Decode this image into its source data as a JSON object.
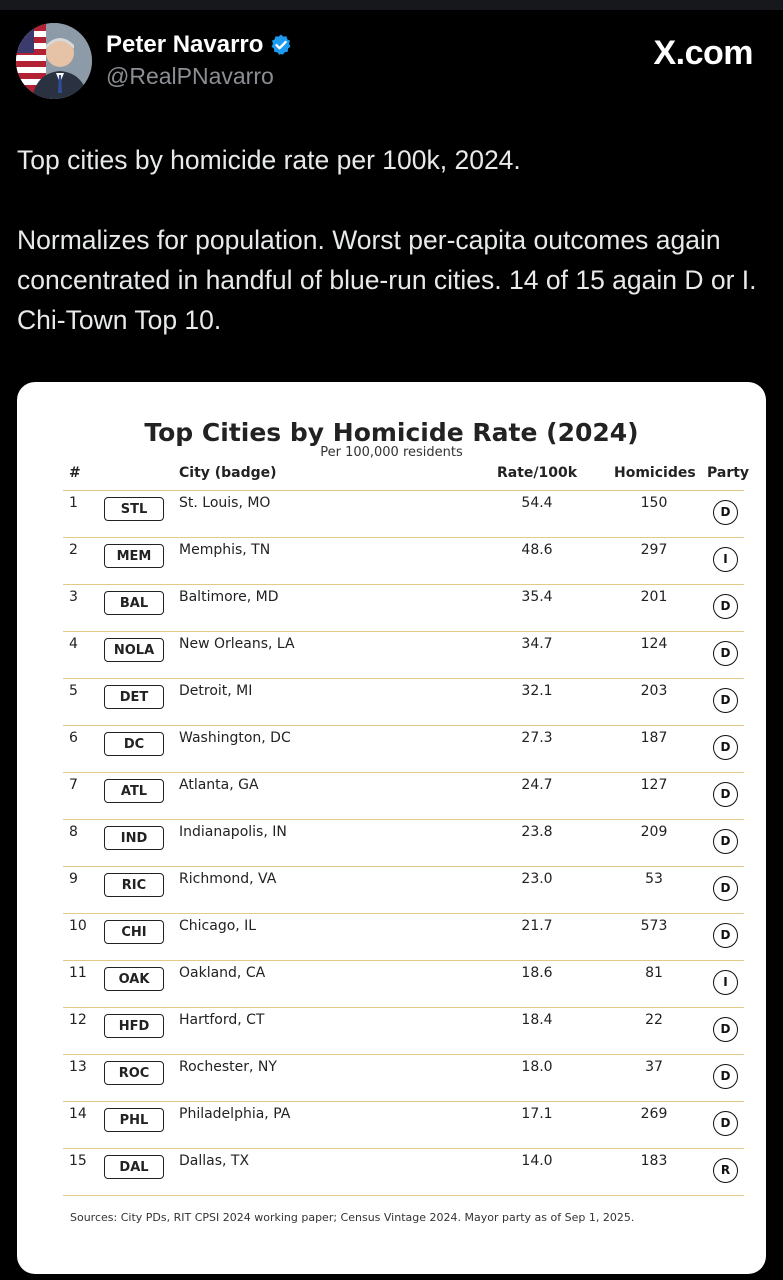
{
  "author": {
    "name": "Peter Navarro",
    "handle": "@RealPNavarro"
  },
  "brand": "X.com",
  "tweet": {
    "line1": "Top cities by homicide rate per 100k, 2024.",
    "line2": "Normalizes for population. Worst per-capita outcomes again concentrated in handful of blue-run cities.  14 of 15 again D or I.  Chi-Town Top 10."
  },
  "table": {
    "title": "Top Cities by Homicide Rate (2024)",
    "subtitle": "Per 100,000 residents",
    "headers": {
      "rank": "#",
      "city": "City (badge)",
      "rate": "Rate/100k",
      "homicides": "Homicides",
      "party": "Party"
    },
    "rows": [
      {
        "rank": "1",
        "badge": "STL",
        "city": "St. Louis, MO",
        "rate": "54.4",
        "homicides": "150",
        "party": "D"
      },
      {
        "rank": "2",
        "badge": "MEM",
        "city": "Memphis, TN",
        "rate": "48.6",
        "homicides": "297",
        "party": "I"
      },
      {
        "rank": "3",
        "badge": "BAL",
        "city": "Baltimore, MD",
        "rate": "35.4",
        "homicides": "201",
        "party": "D"
      },
      {
        "rank": "4",
        "badge": "NOLA",
        "city": "New Orleans, LA",
        "rate": "34.7",
        "homicides": "124",
        "party": "D"
      },
      {
        "rank": "5",
        "badge": "DET",
        "city": "Detroit, MI",
        "rate": "32.1",
        "homicides": "203",
        "party": "D"
      },
      {
        "rank": "6",
        "badge": "DC",
        "city": "Washington, DC",
        "rate": "27.3",
        "homicides": "187",
        "party": "D"
      },
      {
        "rank": "7",
        "badge": "ATL",
        "city": "Atlanta, GA",
        "rate": "24.7",
        "homicides": "127",
        "party": "D"
      },
      {
        "rank": "8",
        "badge": "IND",
        "city": "Indianapolis, IN",
        "rate": "23.8",
        "homicides": "209",
        "party": "D"
      },
      {
        "rank": "9",
        "badge": "RIC",
        "city": "Richmond, VA",
        "rate": "23.0",
        "homicides": "53",
        "party": "D"
      },
      {
        "rank": "10",
        "badge": "CHI",
        "city": "Chicago, IL",
        "rate": "21.7",
        "homicides": "573",
        "party": "D"
      },
      {
        "rank": "11",
        "badge": "OAK",
        "city": "Oakland, CA",
        "rate": "18.6",
        "homicides": "81",
        "party": "I"
      },
      {
        "rank": "12",
        "badge": "HFD",
        "city": "Hartford, CT",
        "rate": "18.4",
        "homicides": "22",
        "party": "D"
      },
      {
        "rank": "13",
        "badge": "ROC",
        "city": "Rochester, NY",
        "rate": "18.0",
        "homicides": "37",
        "party": "D"
      },
      {
        "rank": "14",
        "badge": "PHL",
        "city": "Philadelphia, PA",
        "rate": "17.1",
        "homicides": "269",
        "party": "D"
      },
      {
        "rank": "15",
        "badge": "DAL",
        "city": "Dallas, TX",
        "rate": "14.0",
        "homicides": "183",
        "party": "R"
      }
    ],
    "sources": "Sources: City PDs, RIT CPSI 2024 working paper; Census Vintage 2024. Mayor party as of Sep 1, 2025."
  },
  "colors": {
    "verified": "#1d9bf0",
    "row_divider": "#e2c98a"
  }
}
